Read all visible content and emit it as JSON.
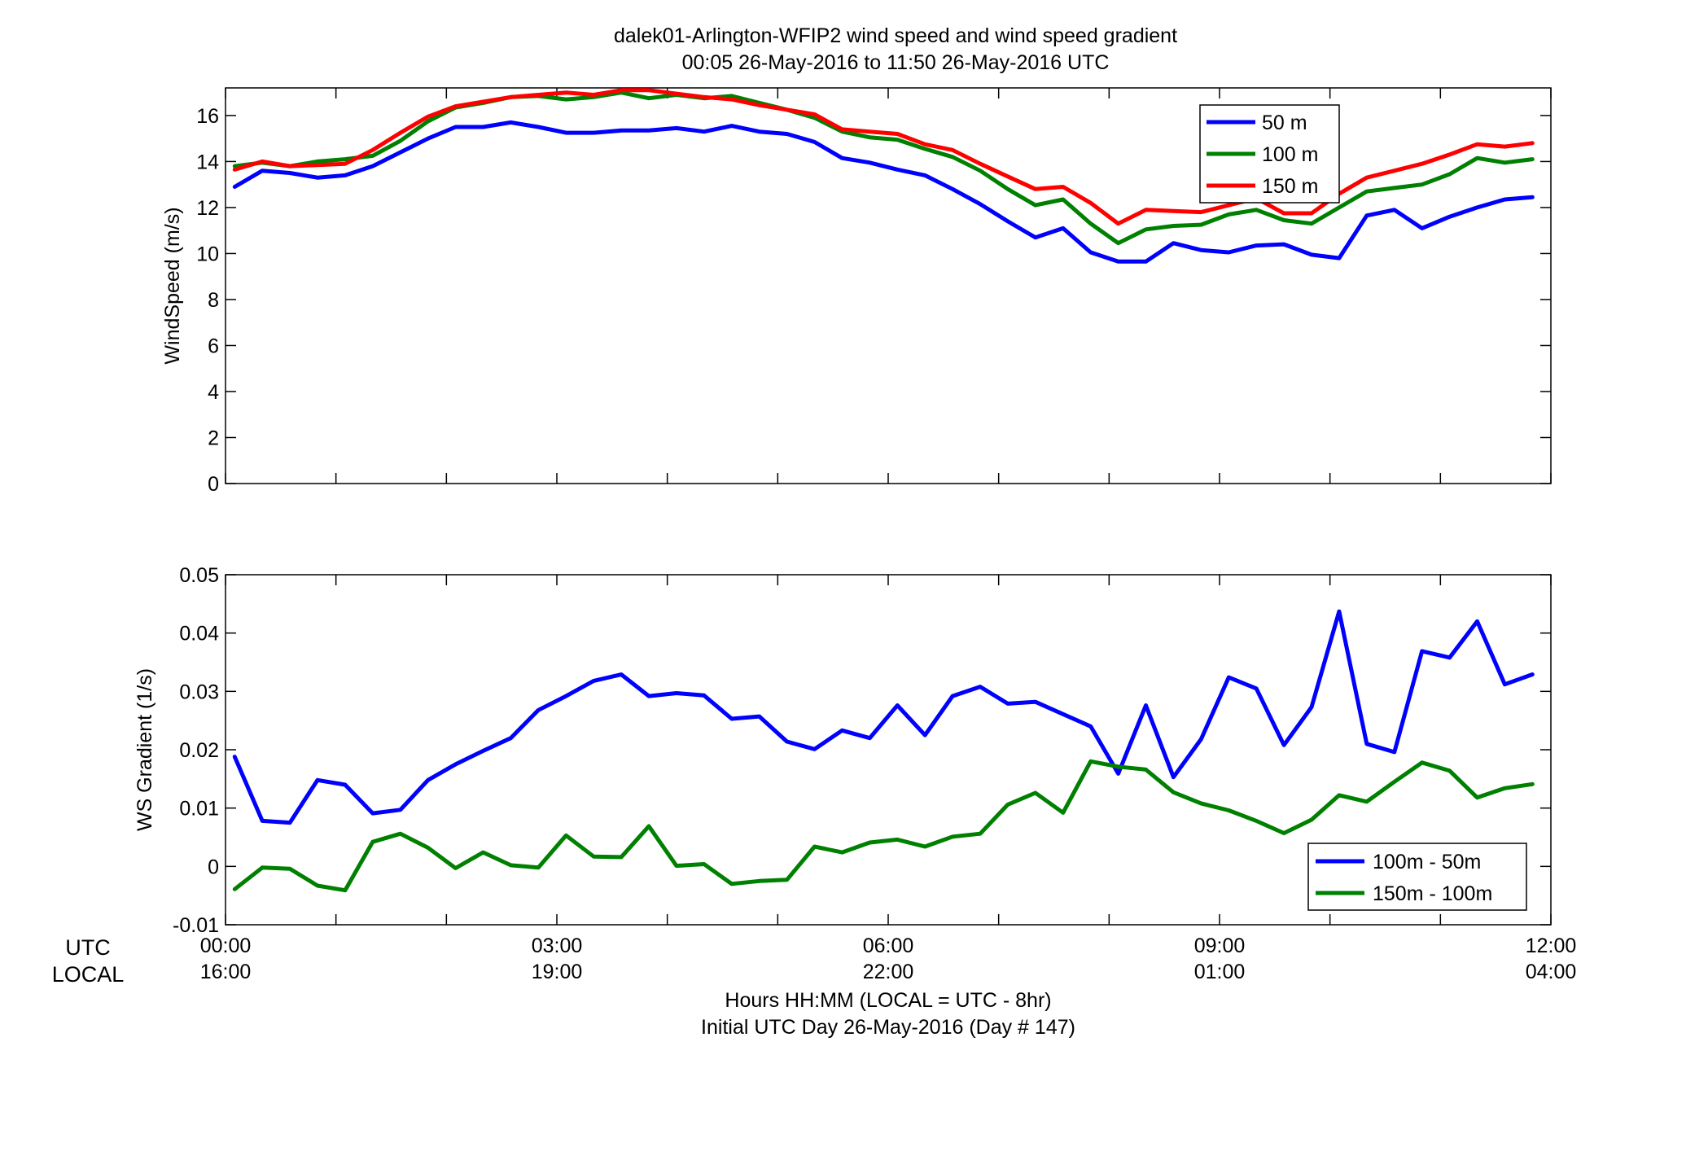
{
  "figure": {
    "title_line1": "dalek01-Arlington-WFIP2  wind speed and wind speed gradient",
    "title_line2": "00:05 26-May-2016 to 11:50 26-May-2016  UTC",
    "row_label_utc": "UTC",
    "row_label_local": "LOCAL",
    "xlabel_line1": "Hours HH:MM  (LOCAL = UTC - 8hr)",
    "xlabel_line2": "Initial UTC Day 26-May-2016 (Day # 147)",
    "utc_ticks": [
      "00:00",
      "03:00",
      "06:00",
      "09:00",
      "12:00"
    ],
    "local_ticks": [
      "16:00",
      "19:00",
      "22:00",
      "01:00",
      "04:00"
    ]
  },
  "chart_data": [
    {
      "type": "line",
      "ylabel": "WindSpeed (m/s)",
      "xlim": [
        0,
        12
      ],
      "ylim": [
        0,
        17.2
      ],
      "yticks": [
        0,
        2,
        4,
        6,
        8,
        10,
        12,
        14,
        16
      ],
      "ytick_labels": [
        "0",
        "2",
        "4",
        "6",
        "8",
        "10",
        "12",
        "14",
        "16"
      ],
      "legend_position": "top-right",
      "x": [
        0.083,
        0.333,
        0.583,
        0.833,
        1.083,
        1.333,
        1.583,
        1.833,
        2.083,
        2.333,
        2.583,
        2.833,
        3.083,
        3.333,
        3.583,
        3.833,
        4.083,
        4.333,
        4.583,
        4.833,
        5.083,
        5.333,
        5.583,
        5.833,
        6.083,
        6.333,
        6.583,
        6.833,
        7.083,
        7.333,
        7.583,
        7.833,
        8.083,
        8.333,
        8.583,
        8.833,
        9.083,
        9.333,
        9.583,
        9.833,
        10.083,
        10.333,
        10.583,
        10.833,
        11.083,
        11.333,
        11.583,
        11.833
      ],
      "series": [
        {
          "name": "50 m",
          "color": "#0000ff",
          "values": [
            12.9,
            13.6,
            13.5,
            13.3,
            13.4,
            13.8,
            14.4,
            15.0,
            15.5,
            15.5,
            15.7,
            15.5,
            15.25,
            15.25,
            15.35,
            15.35,
            15.45,
            15.3,
            15.55,
            15.3,
            15.2,
            14.85,
            14.15,
            13.95,
            13.65,
            13.4,
            12.8,
            12.15,
            11.4,
            10.7,
            11.1,
            10.05,
            9.65,
            9.65,
            10.45,
            10.15,
            10.05,
            10.35,
            10.4,
            9.95,
            9.8,
            11.65,
            11.9,
            11.1,
            11.6,
            12.0,
            12.35,
            12.45
          ]
        },
        {
          "name": "100 m",
          "color": "#008000",
          "values": [
            13.8,
            13.95,
            13.8,
            14.0,
            14.1,
            14.25,
            14.9,
            15.75,
            16.35,
            16.55,
            16.8,
            16.85,
            16.7,
            16.8,
            17.0,
            16.75,
            16.9,
            16.75,
            16.85,
            16.55,
            16.25,
            15.9,
            15.3,
            15.05,
            14.95,
            14.55,
            14.2,
            13.6,
            12.8,
            12.1,
            12.35,
            11.3,
            10.45,
            11.05,
            11.2,
            11.25,
            11.7,
            11.9,
            11.45,
            11.3,
            12.0,
            12.7,
            12.85,
            13.0,
            13.45,
            14.15,
            13.95,
            14.1
          ]
        },
        {
          "name": "150 m",
          "color": "#ff0000",
          "values": [
            13.65,
            14.0,
            13.8,
            13.85,
            13.9,
            14.5,
            15.25,
            15.95,
            16.4,
            16.6,
            16.8,
            16.9,
            17.0,
            16.9,
            17.1,
            17.1,
            16.95,
            16.8,
            16.7,
            16.45,
            16.25,
            16.05,
            15.4,
            15.3,
            15.2,
            14.75,
            14.5,
            13.9,
            13.35,
            12.8,
            12.9,
            12.2,
            11.3,
            11.9,
            11.85,
            11.8,
            12.1,
            12.4,
            11.75,
            11.75,
            12.6,
            13.3,
            13.6,
            13.9,
            14.3,
            14.75,
            14.65,
            14.8
          ]
        }
      ]
    },
    {
      "type": "line",
      "ylabel": "WS Gradient (1/s)",
      "xlim": [
        0,
        12
      ],
      "ylim": [
        -0.01,
        0.05
      ],
      "yticks": [
        -0.01,
        0,
        0.01,
        0.02,
        0.03,
        0.04,
        0.05
      ],
      "ytick_labels": [
        "-0.01",
        "0",
        "0.01",
        "0.02",
        "0.03",
        "0.04",
        "0.05"
      ],
      "legend_position": "bottom-right",
      "x": [
        0.083,
        0.333,
        0.583,
        0.833,
        1.083,
        1.333,
        1.583,
        1.833,
        2.083,
        2.333,
        2.583,
        2.833,
        3.083,
        3.333,
        3.583,
        3.833,
        4.083,
        4.333,
        4.583,
        4.833,
        5.083,
        5.333,
        5.583,
        5.833,
        6.083,
        6.333,
        6.583,
        6.833,
        7.083,
        7.333,
        7.583,
        7.833,
        8.083,
        8.333,
        8.583,
        8.833,
        9.083,
        9.333,
        9.583,
        9.833,
        10.083,
        10.333,
        10.583,
        10.833,
        11.083,
        11.333,
        11.583,
        11.833
      ],
      "series": [
        {
          "name": "100m - 50m",
          "color": "#0000ff",
          "values": [
            0.0188,
            0.0078,
            0.0075,
            0.0148,
            0.014,
            0.0091,
            0.0097,
            0.0148,
            0.0175,
            0.0198,
            0.022,
            0.0268,
            0.0292,
            0.0318,
            0.0329,
            0.0292,
            0.0297,
            0.0293,
            0.0253,
            0.0257,
            0.0214,
            0.0201,
            0.0233,
            0.022,
            0.0276,
            0.0225,
            0.0292,
            0.0308,
            0.0279,
            0.0282,
            0.0261,
            0.024,
            0.0159,
            0.0276,
            0.0153,
            0.0218,
            0.0324,
            0.0305,
            0.0208,
            0.0273,
            0.0437,
            0.021,
            0.0196,
            0.0369,
            0.0358,
            0.042,
            0.0312,
            0.0329
          ]
        },
        {
          "name": "150m - 100m",
          "color": "#008000",
          "values": [
            -0.0039,
            -0.0002,
            -0.0004,
            -0.0033,
            -0.0041,
            0.0042,
            0.0056,
            0.0032,
            -0.0003,
            0.0024,
            0.0002,
            -0.0002,
            0.0053,
            0.0017,
            0.0016,
            0.0069,
            0.0001,
            0.0004,
            -0.003,
            -0.0025,
            -0.0023,
            0.0034,
            0.0024,
            0.0041,
            0.0046,
            0.0034,
            0.0051,
            0.0056,
            0.0106,
            0.0126,
            0.0092,
            0.018,
            0.0171,
            0.0166,
            0.0127,
            0.0108,
            0.0096,
            0.0078,
            0.0057,
            0.008,
            0.0122,
            0.0111,
            0.0145,
            0.0178,
            0.0164,
            0.0118,
            0.0134,
            0.0141
          ]
        }
      ]
    }
  ]
}
